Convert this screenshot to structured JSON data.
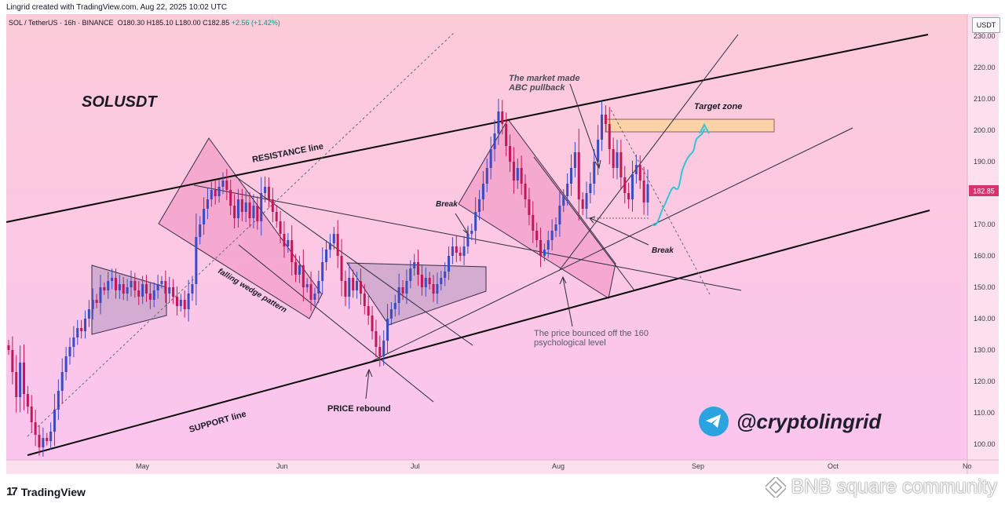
{
  "header": {
    "created_line": "Lingrid created with TradingView.com, Aug 22, 2025 10:02 UTC"
  },
  "legend": {
    "symbol": "SOL / TetherUS · 16h · BINANCE",
    "ohlc": "O180.30  H185.10  L180.00  C182.85",
    "change": "+2.56 (+1.42%)"
  },
  "price_axis": {
    "currency": "USDT",
    "last_price": "182.85",
    "last_price_color": "#d6336c"
  },
  "annotations": {
    "symbol_title": "SOLUSDT",
    "resistance": "RESISTANCE line",
    "support": "SUPPORT line",
    "falling_wedge": "falling wedge pattern",
    "price_rebound": "PRICE rebound",
    "break_1": "Break",
    "break_2": "Break",
    "abc_1": "The market made",
    "abc_2": "ABC pullback",
    "target": "Target zone",
    "bounce_1": "The price bounced off the 160",
    "bounce_2": "psychological level"
  },
  "branding": {
    "handle": "@cryptolingrid",
    "platform": "TradingView",
    "platform_mark": "17",
    "watermark": "BNB square community",
    "watermark_icon": "bnb-diamond-icon",
    "handle_icon": "telegram-icon"
  },
  "colors": {
    "bull": "#3b4cc0",
    "bear": "#c2185b",
    "projection": "#35c3d6",
    "target_fill": "#fbd3a7",
    "bg_top": "#fccbd8",
    "bg_bottom": "#fbc3f0"
  },
  "chart_data": {
    "type": "candlestick",
    "title": "SOLUSDT",
    "timeframe": "16h",
    "x_tick_labels": [
      "May",
      "Jun",
      "Jul",
      "Aug",
      "Sep",
      "Oct",
      "No"
    ],
    "y_tick_labels": [
      "100.00",
      "110.00",
      "120.00",
      "130.00",
      "140.00",
      "150.00",
      "160.00",
      "170.00",
      "180.00",
      "190.00",
      "200.00",
      "210.00",
      "220.00",
      "230.00"
    ],
    "ylim": [
      95,
      237
    ],
    "last_close": 182.85,
    "closes": [
      130,
      123,
      115,
      126,
      116,
      112,
      107,
      103,
      99,
      102,
      101,
      104,
      111,
      117,
      123,
      128,
      131,
      134,
      137,
      136,
      140,
      143,
      146,
      145,
      150,
      149,
      152,
      153,
      149,
      151,
      148,
      150,
      152,
      149,
      147,
      151,
      148,
      146,
      149,
      151,
      152,
      148,
      150,
      147,
      144,
      146,
      143,
      148,
      151,
      166,
      170,
      175,
      178,
      181,
      179,
      182,
      184,
      181,
      176,
      172,
      178,
      174,
      177,
      172,
      176,
      171,
      180,
      182,
      178,
      174,
      171,
      167,
      163,
      165,
      158,
      154,
      157,
      150,
      151,
      146,
      148,
      152,
      158,
      162,
      164,
      167,
      160,
      152,
      147,
      153,
      149,
      152,
      148,
      144,
      141,
      136,
      131,
      128,
      133,
      140,
      143,
      145,
      150,
      148,
      152,
      156,
      158,
      154,
      150,
      153,
      151,
      148,
      151,
      153,
      155,
      160,
      163,
      161,
      160,
      163,
      167,
      168,
      174,
      178,
      183,
      188,
      194,
      199,
      206,
      202,
      195,
      190,
      184,
      188,
      183,
      178,
      173,
      168,
      165,
      160,
      162,
      165,
      168,
      170,
      176,
      179,
      183,
      188,
      193,
      178,
      175,
      180,
      183,
      190,
      197,
      205,
      202,
      194,
      188,
      193,
      185,
      180,
      178,
      186,
      189,
      184,
      177,
      182.85
    ]
  }
}
